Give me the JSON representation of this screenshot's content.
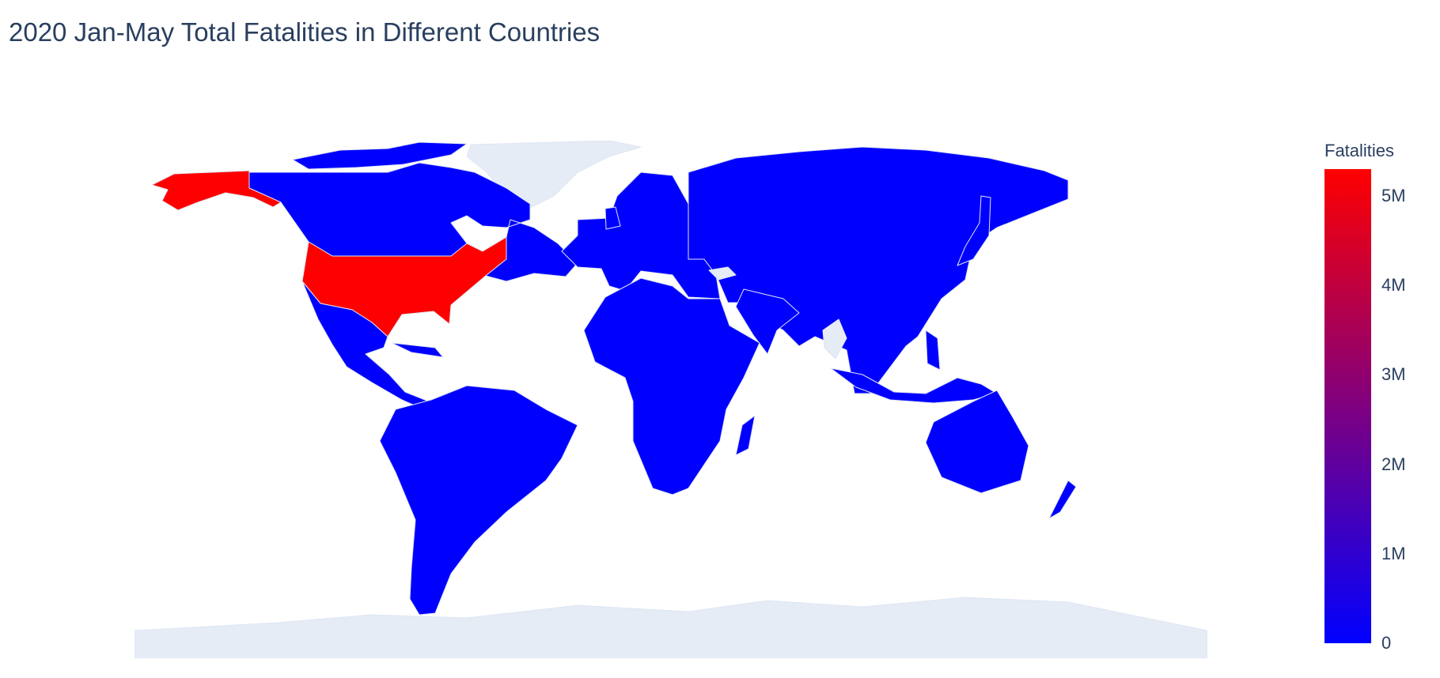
{
  "chart_data": {
    "type": "choropleth",
    "title": "2020 Jan-May Total Fatalities in Different Countries",
    "projection": "equirectangular",
    "colorscale": [
      "#0000ff",
      "#ff0000"
    ],
    "no_data_color": "#e5ecf6",
    "country_border_color": "#dfe6f3",
    "colorbar": {
      "title": "Fatalities",
      "range": [
        0,
        5300000
      ],
      "ticks": [
        {
          "value": 0,
          "label": "0"
        },
        {
          "value": 1000000,
          "label": "1M"
        },
        {
          "value": 2000000,
          "label": "2M"
        },
        {
          "value": 3000000,
          "label": "3M"
        },
        {
          "value": 4000000,
          "label": "4M"
        },
        {
          "value": 5000000,
          "label": "5M"
        }
      ]
    },
    "highlighted": [
      {
        "country": "United States",
        "fatalities": 5300000
      }
    ],
    "all_other_countries_fatalities": 0,
    "no_data_regions": [
      "Greenland",
      "Antarctica",
      "Myanmar",
      "Armenia",
      "Azerbaijan",
      "Georgia"
    ]
  }
}
